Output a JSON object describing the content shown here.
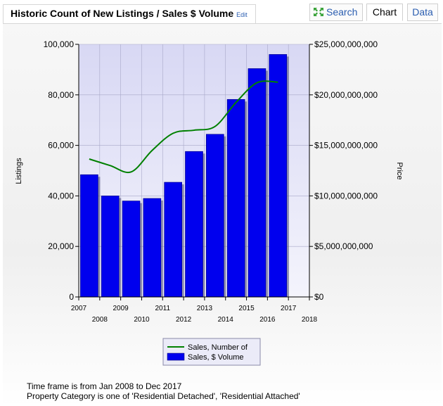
{
  "header": {
    "title": "Historic Count of New Listings / Sales $ Volume",
    "edit_label": "Edit",
    "tabs": [
      {
        "label": "Search",
        "icon": "expand-arrows-icon"
      },
      {
        "label": "Chart"
      },
      {
        "label": "Data"
      }
    ],
    "active_tab": "Chart"
  },
  "chart_data": {
    "type": "bar",
    "title": "",
    "ylabel": "Listings",
    "y2label": "Price",
    "ylim": [
      0,
      100000
    ],
    "y2lim": [
      0,
      25000000000
    ],
    "xlim": [
      2007,
      2018
    ],
    "x_ticks_top_row": [
      "2007",
      "2009",
      "2011",
      "2013",
      "2015",
      "2017"
    ],
    "x_ticks_bottom_row": [
      "2008",
      "2010",
      "2012",
      "2014",
      "2016",
      "2018"
    ],
    "y_ticks": [
      "0",
      "20,000",
      "40,000",
      "60,000",
      "80,000",
      "100,000"
    ],
    "y2_ticks": [
      "$0",
      "$5,000,000,000",
      "$10,000,000,000",
      "$15,000,000,000",
      "$20,000,000,000",
      "$25,000,000,000"
    ],
    "categories": [
      2008,
      2009,
      2010,
      2011,
      2012,
      2013,
      2014,
      2015,
      2016,
      2017
    ],
    "series": [
      {
        "name": "Sales, $ Volume",
        "type": "bar",
        "axis": "right",
        "color": "#0000ee",
        "values": [
          12100000000,
          10000000000,
          9500000000,
          9750000000,
          11350000000,
          14400000000,
          16100000000,
          19550000000,
          22600000000,
          24000000000
        ]
      },
      {
        "name": "Sales, Number of",
        "type": "line",
        "axis": "left",
        "color": "#008000",
        "values": [
          54600,
          52000,
          49500,
          58000,
          64800,
          66000,
          67500,
          77000,
          84800,
          85000
        ]
      }
    ],
    "grid": true,
    "legend_position": "bottom-center"
  },
  "footer": {
    "lines": [
      "Time frame is from Jan 2008 to Dec 2017",
      "Property Category is one of 'Residential Detached', 'Residential Attached'"
    ]
  }
}
